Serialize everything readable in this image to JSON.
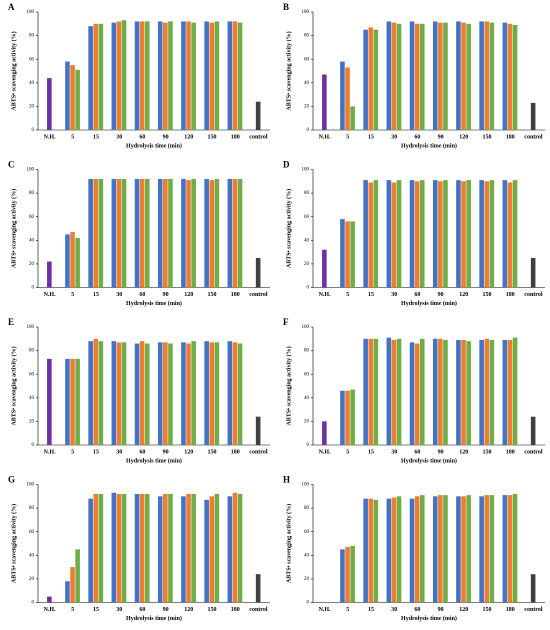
{
  "chart_data": [
    {
      "panel": "A",
      "type": "bar",
      "y_label": "ABTS• scavenging activity (%)",
      "x_label": "Hydrolysis time (min)",
      "categories": [
        "N.H.",
        "5",
        "15",
        "30",
        "60",
        "90",
        "120",
        "150",
        "180",
        "control"
      ],
      "ylim": [
        0,
        100
      ],
      "yticks": [
        0,
        20,
        40,
        60,
        80,
        100
      ],
      "series": [
        {
          "color": "#7030a0",
          "values": [
            44,
            null,
            null,
            null,
            null,
            null,
            null,
            null,
            null,
            null
          ]
        },
        {
          "color": "#4472c4",
          "values": [
            null,
            58,
            88,
            91,
            92,
            92,
            92,
            92,
            92,
            null
          ]
        },
        {
          "color": "#ed7d31",
          "values": [
            null,
            55,
            90,
            92,
            92,
            91,
            92,
            91,
            92,
            null
          ]
        },
        {
          "color": "#70ad47",
          "values": [
            null,
            51,
            90,
            93,
            92,
            92,
            91,
            92,
            91,
            null
          ]
        },
        {
          "color": "#404040",
          "values": [
            null,
            null,
            null,
            null,
            null,
            null,
            null,
            null,
            null,
            24
          ]
        }
      ]
    },
    {
      "panel": "B",
      "type": "bar",
      "y_label": "ABTS• scavenging activity (%)",
      "x_label": "Hydrolysis time (min)",
      "categories": [
        "N.H.",
        "5",
        "15",
        "30",
        "60",
        "90",
        "120",
        "150",
        "180",
        "control"
      ],
      "ylim": [
        0,
        100
      ],
      "yticks": [
        0,
        20,
        40,
        60,
        80,
        100
      ],
      "series": [
        {
          "color": "#7030a0",
          "values": [
            47,
            null,
            null,
            null,
            null,
            null,
            null,
            null,
            null,
            null
          ]
        },
        {
          "color": "#4472c4",
          "values": [
            null,
            58,
            85,
            92,
            92,
            92,
            92,
            92,
            91,
            null
          ]
        },
        {
          "color": "#ed7d31",
          "values": [
            null,
            53,
            87,
            91,
            90,
            91,
            91,
            92,
            90,
            null
          ]
        },
        {
          "color": "#70ad47",
          "values": [
            null,
            20,
            85,
            90,
            90,
            91,
            90,
            91,
            89,
            null
          ]
        },
        {
          "color": "#404040",
          "values": [
            null,
            null,
            null,
            null,
            null,
            null,
            null,
            null,
            null,
            23
          ]
        }
      ]
    },
    {
      "panel": "C",
      "type": "bar",
      "y_label": "ABTS• scavenging activity (%)",
      "x_label": "Hydrolysis time (min)",
      "categories": [
        "N.H.",
        "5",
        "15",
        "30",
        "60",
        "90",
        "120",
        "150",
        "180",
        "control"
      ],
      "ylim": [
        0,
        100
      ],
      "yticks": [
        0,
        20,
        40,
        60,
        80,
        100
      ],
      "series": [
        {
          "color": "#7030a0",
          "values": [
            22,
            null,
            null,
            null,
            null,
            null,
            null,
            null,
            null,
            null
          ]
        },
        {
          "color": "#4472c4",
          "values": [
            null,
            45,
            92,
            92,
            92,
            92,
            92,
            92,
            92,
            null
          ]
        },
        {
          "color": "#ed7d31",
          "values": [
            null,
            47,
            92,
            92,
            92,
            92,
            91,
            91,
            92,
            null
          ]
        },
        {
          "color": "#70ad47",
          "values": [
            null,
            42,
            92,
            92,
            92,
            92,
            92,
            92,
            92,
            null
          ]
        },
        {
          "color": "#404040",
          "values": [
            null,
            null,
            null,
            null,
            null,
            null,
            null,
            null,
            null,
            25
          ]
        }
      ]
    },
    {
      "panel": "D",
      "type": "bar",
      "y_label": "ABTS• scavenging activity (%)",
      "x_label": "Hydrolysis time (min)",
      "categories": [
        "N.H.",
        "5",
        "15",
        "30",
        "60",
        "90",
        "120",
        "150",
        "180",
        "control"
      ],
      "ylim": [
        0,
        100
      ],
      "yticks": [
        0,
        20,
        40,
        60,
        80,
        100
      ],
      "series": [
        {
          "color": "#7030a0",
          "values": [
            32,
            null,
            null,
            null,
            null,
            null,
            null,
            null,
            null,
            null
          ]
        },
        {
          "color": "#4472c4",
          "values": [
            null,
            58,
            91,
            91,
            91,
            91,
            91,
            91,
            91,
            null
          ]
        },
        {
          "color": "#ed7d31",
          "values": [
            null,
            56,
            89,
            89,
            90,
            90,
            90,
            90,
            89,
            null
          ]
        },
        {
          "color": "#70ad47",
          "values": [
            null,
            56,
            91,
            91,
            91,
            91,
            91,
            91,
            91,
            null
          ]
        },
        {
          "color": "#404040",
          "values": [
            null,
            null,
            null,
            null,
            null,
            null,
            null,
            null,
            null,
            25
          ]
        }
      ]
    },
    {
      "panel": "E",
      "type": "bar",
      "y_label": "ABTS• scavenging activity (%)",
      "x_label": "Hydrolysis time (min)",
      "categories": [
        "N.H.",
        "5",
        "15",
        "30",
        "60",
        "90",
        "120",
        "150",
        "180",
        "control"
      ],
      "ylim": [
        0,
        100
      ],
      "yticks": [
        0,
        20,
        40,
        60,
        80,
        100
      ],
      "series": [
        {
          "color": "#7030a0",
          "values": [
            73,
            null,
            null,
            null,
            null,
            null,
            null,
            null,
            null,
            null
          ]
        },
        {
          "color": "#4472c4",
          "values": [
            null,
            73,
            88,
            88,
            86,
            87,
            87,
            88,
            88,
            null
          ]
        },
        {
          "color": "#ed7d31",
          "values": [
            null,
            73,
            90,
            87,
            88,
            87,
            86,
            87,
            87,
            null
          ]
        },
        {
          "color": "#70ad47",
          "values": [
            null,
            73,
            88,
            87,
            86,
            86,
            88,
            87,
            86,
            null
          ]
        },
        {
          "color": "#404040",
          "values": [
            null,
            null,
            null,
            null,
            null,
            null,
            null,
            null,
            null,
            24
          ]
        }
      ]
    },
    {
      "panel": "F",
      "type": "bar",
      "y_label": "ABTS• scavenging activity (%)",
      "x_label": "Hydrolysis time (min)",
      "categories": [
        "N.H.",
        "5",
        "15",
        "30",
        "60",
        "90",
        "120",
        "150",
        "180",
        "control"
      ],
      "ylim": [
        0,
        100
      ],
      "yticks": [
        0,
        20,
        40,
        60,
        80,
        100
      ],
      "series": [
        {
          "color": "#7030a0",
          "values": [
            20,
            null,
            null,
            null,
            null,
            null,
            null,
            null,
            null,
            null
          ]
        },
        {
          "color": "#4472c4",
          "values": [
            null,
            46,
            90,
            91,
            87,
            90,
            89,
            89,
            89,
            null
          ]
        },
        {
          "color": "#ed7d31",
          "values": [
            null,
            46,
            90,
            89,
            86,
            90,
            89,
            90,
            89,
            null
          ]
        },
        {
          "color": "#70ad47",
          "values": [
            null,
            47,
            90,
            90,
            90,
            89,
            88,
            89,
            91,
            null
          ]
        },
        {
          "color": "#404040",
          "values": [
            null,
            null,
            null,
            null,
            null,
            null,
            null,
            null,
            null,
            24
          ]
        }
      ]
    },
    {
      "panel": "G",
      "type": "bar",
      "y_label": "ABTS• scavenging activity (%)",
      "x_label": "Hydrolysis time (min)",
      "categories": [
        "N.H.",
        "5",
        "15",
        "30",
        "60",
        "90",
        "120",
        "150",
        "180",
        "control"
      ],
      "ylim": [
        0,
        100
      ],
      "yticks": [
        0,
        20,
        40,
        60,
        80,
        100
      ],
      "series": [
        {
          "color": "#7030a0",
          "values": [
            5,
            null,
            null,
            null,
            null,
            null,
            null,
            null,
            null,
            null
          ]
        },
        {
          "color": "#4472c4",
          "values": [
            null,
            18,
            88,
            93,
            92,
            90,
            90,
            87,
            90,
            null
          ]
        },
        {
          "color": "#ed7d31",
          "values": [
            null,
            30,
            92,
            92,
            92,
            92,
            92,
            90,
            93,
            null
          ]
        },
        {
          "color": "#70ad47",
          "values": [
            null,
            45,
            92,
            92,
            92,
            92,
            92,
            92,
            92,
            null
          ]
        },
        {
          "color": "#404040",
          "values": [
            null,
            null,
            null,
            null,
            null,
            null,
            null,
            null,
            null,
            24
          ]
        }
      ]
    },
    {
      "panel": "H",
      "type": "bar",
      "y_label": "ABTS• scavenging activity (%)",
      "x_label": "Hydrolysis time (min)",
      "categories": [
        "N.H.",
        "5",
        "15",
        "30",
        "60",
        "90",
        "120",
        "150",
        "180",
        "control"
      ],
      "ylim": [
        0,
        100
      ],
      "yticks": [
        0,
        20,
        40,
        60,
        80,
        100
      ],
      "series": [
        {
          "color": "#7030a0",
          "values": [
            null,
            null,
            null,
            null,
            null,
            null,
            null,
            null,
            null,
            null
          ]
        },
        {
          "color": "#4472c4",
          "values": [
            null,
            45,
            88,
            88,
            88,
            90,
            90,
            90,
            91,
            null
          ]
        },
        {
          "color": "#ed7d31",
          "values": [
            null,
            47,
            88,
            89,
            90,
            91,
            90,
            91,
            91,
            null
          ]
        },
        {
          "color": "#70ad47",
          "values": [
            null,
            48,
            87,
            90,
            91,
            91,
            91,
            91,
            92,
            null
          ]
        },
        {
          "color": "#404040",
          "values": [
            null,
            null,
            null,
            null,
            null,
            null,
            null,
            null,
            null,
            24
          ]
        }
      ]
    }
  ]
}
